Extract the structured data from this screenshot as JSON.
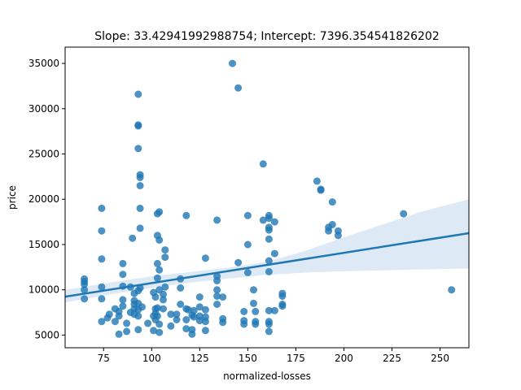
{
  "chart_data": {
    "type": "scatter",
    "title": "Slope: 33.42941992988754; Intercept: 7396.354541826202",
    "xlabel": "normalized-losses",
    "ylabel": "price",
    "xlim": [
      55,
      265
    ],
    "ylim": [
      3600,
      36800
    ],
    "x_ticks": [
      75,
      100,
      125,
      150,
      175,
      200,
      225,
      250
    ],
    "x_tick_labels": [
      "75",
      "100",
      "125",
      "150",
      "175",
      "200",
      "225",
      "250"
    ],
    "y_ticks": [
      5000,
      10000,
      15000,
      20000,
      25000,
      30000,
      35000
    ],
    "y_tick_labels": [
      "5000",
      "10000",
      "15000",
      "20000",
      "25000",
      "30000",
      "35000"
    ],
    "grid": false,
    "legend": "none",
    "colors": {
      "points": "#1f77b4",
      "line": "#1f77b4",
      "band": "#c6dbef"
    },
    "regression": {
      "slope": 33.42941992988754,
      "intercept": 7396.354541826202
    },
    "confidence_band": {
      "x": [
        55,
        80,
        100,
        120,
        140,
        160,
        180,
        200,
        220,
        240,
        265
      ],
      "lower": [
        8600,
        9550,
        10200,
        10800,
        11250,
        11650,
        11900,
        12050,
        12150,
        12250,
        12350
      ],
      "upper": [
        10000,
        10850,
        11500,
        11950,
        12450,
        13100,
        14300,
        15800,
        17200,
        18600,
        20000
      ]
    },
    "points": [
      {
        "x": 65,
        "y": 11200
      },
      {
        "x": 65,
        "y": 10900
      },
      {
        "x": 65,
        "y": 10600
      },
      {
        "x": 65,
        "y": 10000
      },
      {
        "x": 65,
        "y": 9000
      },
      {
        "x": 74,
        "y": 19000
      },
      {
        "x": 74,
        "y": 16500
      },
      {
        "x": 74,
        "y": 13400
      },
      {
        "x": 74,
        "y": 10300
      },
      {
        "x": 74,
        "y": 9000
      },
      {
        "x": 74,
        "y": 6500
      },
      {
        "x": 77,
        "y": 6900
      },
      {
        "x": 78,
        "y": 7300
      },
      {
        "x": 81,
        "y": 6500
      },
      {
        "x": 81,
        "y": 7900
      },
      {
        "x": 83,
        "y": 5100
      },
      {
        "x": 83,
        "y": 7100
      },
      {
        "x": 83,
        "y": 7600
      },
      {
        "x": 85,
        "y": 12900
      },
      {
        "x": 85,
        "y": 11700
      },
      {
        "x": 85,
        "y": 10400
      },
      {
        "x": 85,
        "y": 8900
      },
      {
        "x": 85,
        "y": 8200
      },
      {
        "x": 87,
        "y": 5400
      },
      {
        "x": 87,
        "y": 6300
      },
      {
        "x": 89,
        "y": 7500
      },
      {
        "x": 89,
        "y": 10300
      },
      {
        "x": 90,
        "y": 15700
      },
      {
        "x": 91,
        "y": 8800
      },
      {
        "x": 91,
        "y": 8400
      },
      {
        "x": 91,
        "y": 7900
      },
      {
        "x": 91,
        "y": 7300
      },
      {
        "x": 91,
        "y": 9600
      },
      {
        "x": 93,
        "y": 31600
      },
      {
        "x": 93,
        "y": 28200
      },
      {
        "x": 93,
        "y": 28100
      },
      {
        "x": 93,
        "y": 25600
      },
      {
        "x": 93,
        "y": 9900
      },
      {
        "x": 93,
        "y": 8500
      },
      {
        "x": 93,
        "y": 7800
      },
      {
        "x": 93,
        "y": 7100
      },
      {
        "x": 93,
        "y": 5600
      },
      {
        "x": 94,
        "y": 22700
      },
      {
        "x": 94,
        "y": 22400
      },
      {
        "x": 94,
        "y": 21500
      },
      {
        "x": 94,
        "y": 19000
      },
      {
        "x": 94,
        "y": 16800
      },
      {
        "x": 94,
        "y": 10200
      },
      {
        "x": 95,
        "y": 8100
      },
      {
        "x": 98,
        "y": 6300
      },
      {
        "x": 101,
        "y": 9700
      },
      {
        "x": 101,
        "y": 7100
      },
      {
        "x": 101,
        "y": 5500
      },
      {
        "x": 102,
        "y": 9200
      },
      {
        "x": 102,
        "y": 7900
      },
      {
        "x": 102,
        "y": 7400
      },
      {
        "x": 102,
        "y": 6700
      },
      {
        "x": 103,
        "y": 18400
      },
      {
        "x": 103,
        "y": 16000
      },
      {
        "x": 103,
        "y": 12900
      },
      {
        "x": 103,
        "y": 11300
      },
      {
        "x": 103,
        "y": 8000
      },
      {
        "x": 103,
        "y": 7100
      },
      {
        "x": 104,
        "y": 18600
      },
      {
        "x": 104,
        "y": 15500
      },
      {
        "x": 104,
        "y": 12200
      },
      {
        "x": 104,
        "y": 10000
      },
      {
        "x": 104,
        "y": 5300
      },
      {
        "x": 104,
        "y": 6200
      },
      {
        "x": 106,
        "y": 9500
      },
      {
        "x": 106,
        "y": 8900
      },
      {
        "x": 106,
        "y": 7900
      },
      {
        "x": 107,
        "y": 14400
      },
      {
        "x": 107,
        "y": 13600
      },
      {
        "x": 107,
        "y": 10300
      },
      {
        "x": 110,
        "y": 7300
      },
      {
        "x": 110,
        "y": 6000
      },
      {
        "x": 113,
        "y": 7300
      },
      {
        "x": 113,
        "y": 6700
      },
      {
        "x": 115,
        "y": 11200
      },
      {
        "x": 115,
        "y": 10200
      },
      {
        "x": 115,
        "y": 8400
      },
      {
        "x": 118,
        "y": 18200
      },
      {
        "x": 118,
        "y": 7900
      },
      {
        "x": 118,
        "y": 6700
      },
      {
        "x": 118,
        "y": 5700
      },
      {
        "x": 119,
        "y": 7800
      },
      {
        "x": 121,
        "y": 7200
      },
      {
        "x": 121,
        "y": 5600
      },
      {
        "x": 121,
        "y": 5100
      },
      {
        "x": 122,
        "y": 7700
      },
      {
        "x": 122,
        "y": 7000
      },
      {
        "x": 125,
        "y": 9200
      },
      {
        "x": 125,
        "y": 8100
      },
      {
        "x": 125,
        "y": 7100
      },
      {
        "x": 125,
        "y": 6600
      },
      {
        "x": 128,
        "y": 13500
      },
      {
        "x": 128,
        "y": 7800
      },
      {
        "x": 128,
        "y": 7000
      },
      {
        "x": 128,
        "y": 6500
      },
      {
        "x": 128,
        "y": 5500
      },
      {
        "x": 134,
        "y": 17700
      },
      {
        "x": 134,
        "y": 11500
      },
      {
        "x": 134,
        "y": 11000
      },
      {
        "x": 134,
        "y": 10000
      },
      {
        "x": 134,
        "y": 9300
      },
      {
        "x": 134,
        "y": 8400
      },
      {
        "x": 137,
        "y": 9200
      },
      {
        "x": 137,
        "y": 6800
      },
      {
        "x": 137,
        "y": 6400
      },
      {
        "x": 142,
        "y": 35000
      },
      {
        "x": 145,
        "y": 32300
      },
      {
        "x": 145,
        "y": 13000
      },
      {
        "x": 148,
        "y": 7600
      },
      {
        "x": 148,
        "y": 6600
      },
      {
        "x": 148,
        "y": 6200
      },
      {
        "x": 150,
        "y": 18200
      },
      {
        "x": 150,
        "y": 15000
      },
      {
        "x": 150,
        "y": 11900
      },
      {
        "x": 153,
        "y": 10000
      },
      {
        "x": 153,
        "y": 8500
      },
      {
        "x": 154,
        "y": 7600
      },
      {
        "x": 154,
        "y": 6500
      },
      {
        "x": 154,
        "y": 6200
      },
      {
        "x": 158,
        "y": 23900
      },
      {
        "x": 158,
        "y": 17700
      },
      {
        "x": 161,
        "y": 18200
      },
      {
        "x": 161,
        "y": 17900
      },
      {
        "x": 161,
        "y": 16900
      },
      {
        "x": 161,
        "y": 16600
      },
      {
        "x": 161,
        "y": 15600
      },
      {
        "x": 161,
        "y": 13200
      },
      {
        "x": 161,
        "y": 12000
      },
      {
        "x": 161,
        "y": 7700
      },
      {
        "x": 161,
        "y": 6500
      },
      {
        "x": 161,
        "y": 6200
      },
      {
        "x": 161,
        "y": 5400
      },
      {
        "x": 164,
        "y": 17500
      },
      {
        "x": 164,
        "y": 14000
      },
      {
        "x": 164,
        "y": 7700
      },
      {
        "x": 168,
        "y": 9600
      },
      {
        "x": 168,
        "y": 9300
      },
      {
        "x": 168,
        "y": 8400
      },
      {
        "x": 168,
        "y": 8200
      },
      {
        "x": 186,
        "y": 22000
      },
      {
        "x": 188,
        "y": 21100
      },
      {
        "x": 188,
        "y": 21000
      },
      {
        "x": 192,
        "y": 16900
      },
      {
        "x": 192,
        "y": 16500
      },
      {
        "x": 194,
        "y": 19700
      },
      {
        "x": 194,
        "y": 17200
      },
      {
        "x": 197,
        "y": 16500
      },
      {
        "x": 197,
        "y": 16000
      },
      {
        "x": 231,
        "y": 18400
      },
      {
        "x": 256,
        "y": 10000
      }
    ]
  }
}
